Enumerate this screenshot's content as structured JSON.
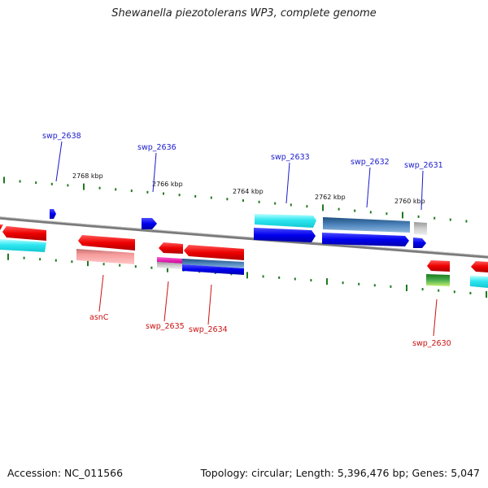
{
  "title": "Shewanella piezotolerans WP3, complete genome",
  "accession": "Accession: NC_011566",
  "topology": "Topology: circular; Length: 5,396,476 bp; Genes: 5,047",
  "ticks": [
    "2768 kbp",
    "2766 kbp",
    "2764 kbp",
    "2762 kbp",
    "2760 kbp"
  ],
  "labels": {
    "swp_2638": "swp_2638",
    "swp_2636": "swp_2636",
    "swp_2633": "swp_2633",
    "swp_2632": "swp_2632",
    "swp_2631": "swp_2631",
    "asnC": "asnC",
    "swp_2635": "swp_2635",
    "swp_2634": "swp_2634",
    "swp_2630": "swp_2630"
  },
  "colors": {
    "forward_label": "#1a1acc",
    "reverse_label": "#cc1111",
    "tick": "#1f7a1f",
    "backbone": "#888888"
  }
}
